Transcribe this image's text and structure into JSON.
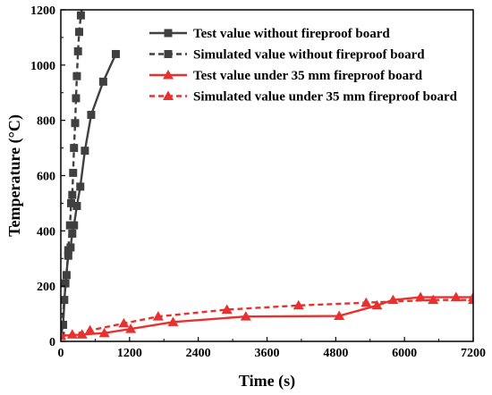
{
  "chart_data": {
    "type": "line",
    "xlabel": "Time (s)",
    "ylabel": "Temperature (°C)",
    "xlim": [
      0,
      7200
    ],
    "ylim": [
      0,
      1200
    ],
    "xticks": [
      "0",
      "1200",
      "2400",
      "3600",
      "4800",
      "6000",
      "7200"
    ],
    "yticks": [
      "0",
      "200",
      "400",
      "600",
      "800",
      "1000",
      "1200"
    ],
    "grid": false,
    "legend_position": "top-right",
    "series": [
      {
        "name": "Test value without fireproof board",
        "color": "#404040",
        "line": "solid",
        "marker": "square",
        "x": [
          0,
          40,
          80,
          130,
          170,
          200,
          230,
          280,
          340,
          420,
          530,
          740,
          960
        ],
        "y": [
          20,
          60,
          210,
          310,
          340,
          390,
          420,
          490,
          560,
          690,
          820,
          940,
          1040
        ]
      },
      {
        "name": "Simulated value without fireproof board",
        "color": "#404040",
        "line": "dashed",
        "marker": "square",
        "x": [
          0,
          20,
          60,
          100,
          130,
          160,
          180,
          200,
          215,
          230,
          250,
          265,
          280,
          300,
          320,
          350,
          380,
          410
        ],
        "y": [
          20,
          60,
          150,
          240,
          330,
          420,
          500,
          530,
          610,
          700,
          790,
          880,
          960,
          1050,
          1120,
          1180,
          1220,
          1250
        ]
      },
      {
        "name": "Test value under 35 mm fireproof board",
        "color": "#e8312f",
        "line": "solid",
        "marker": "triangle",
        "x": [
          0,
          370,
          760,
          1220,
          1960,
          3230,
          4860,
          5520,
          5800,
          6280,
          6900,
          7200
        ],
        "y": [
          20,
          25,
          30,
          45,
          70,
          90,
          92,
          130,
          150,
          160,
          160,
          160
        ]
      },
      {
        "name": "Simulated value under 35 mm fireproof board",
        "color": "#e8312f",
        "line": "dashed",
        "marker": "triangle",
        "x": [
          0,
          200,
          510,
          1100,
          1700,
          2900,
          4150,
          5330,
          6500,
          7200
        ],
        "y": [
          20,
          25,
          40,
          65,
          90,
          115,
          130,
          140,
          150,
          150
        ]
      }
    ]
  }
}
